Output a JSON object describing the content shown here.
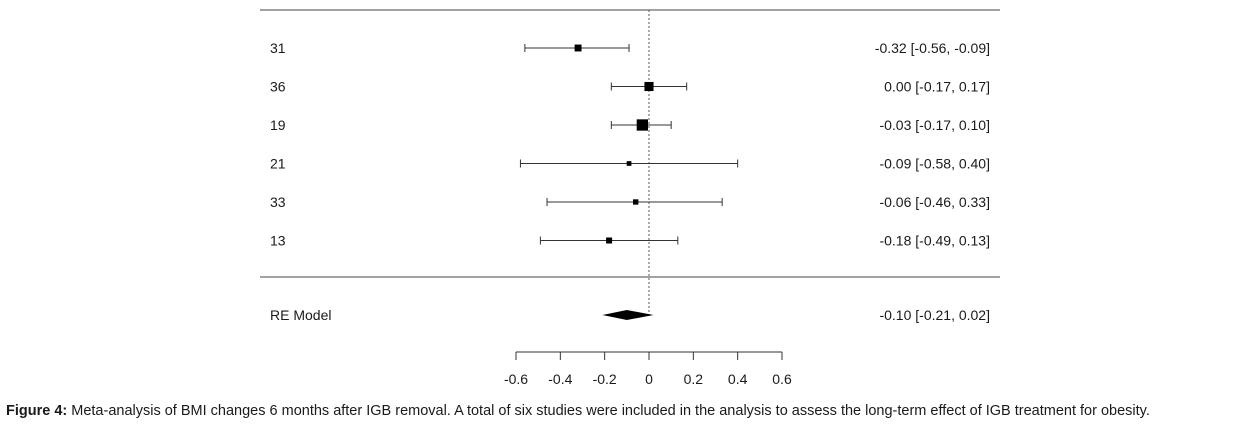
{
  "chart_data": {
    "type": "forest",
    "studies": [
      {
        "label": "31",
        "estimate": -0.32,
        "lower": -0.56,
        "upper": -0.09,
        "ci_text": "-0.32 [-0.56, -0.09]",
        "weight": 2
      },
      {
        "label": "36",
        "estimate": 0.0,
        "lower": -0.17,
        "upper": 0.17,
        "ci_text": "0.00 [-0.17,  0.17]",
        "weight": 3
      },
      {
        "label": "19",
        "estimate": -0.03,
        "lower": -0.17,
        "upper": 0.1,
        "ci_text": "-0.03 [-0.17,  0.10]",
        "weight": 4
      },
      {
        "label": "21",
        "estimate": -0.09,
        "lower": -0.58,
        "upper": 0.4,
        "ci_text": "-0.09 [-0.58,  0.40]",
        "weight": 1
      },
      {
        "label": "33",
        "estimate": -0.06,
        "lower": -0.46,
        "upper": 0.33,
        "ci_text": "-0.06 [-0.46,  0.33]",
        "weight": 1.3
      },
      {
        "label": "13",
        "estimate": -0.18,
        "lower": -0.49,
        "upper": 0.13,
        "ci_text": "-0.18 [-0.49,  0.13]",
        "weight": 1.6
      }
    ],
    "summary": {
      "label": "RE Model",
      "estimate": -0.1,
      "lower": -0.21,
      "upper": 0.02,
      "ci_text": "-0.10 [-0.21,  0.02]"
    },
    "xlim": [
      -0.6,
      0.6
    ],
    "xticks": [
      -0.6,
      -0.4,
      -0.2,
      0,
      0.2,
      0.4,
      0.6
    ],
    "xtick_labels": [
      "-0.6",
      "-0.4",
      "-0.2",
      "0",
      "0.2",
      "0.4",
      "0.6"
    ],
    "reference_line": 0
  },
  "caption": {
    "label": "Figure 4:",
    "text": " Meta-analysis of BMI changes 6 months after IGB removal. A total of six studies were included in the analysis to assess the long-term effect of IGB treatment for obesity."
  }
}
